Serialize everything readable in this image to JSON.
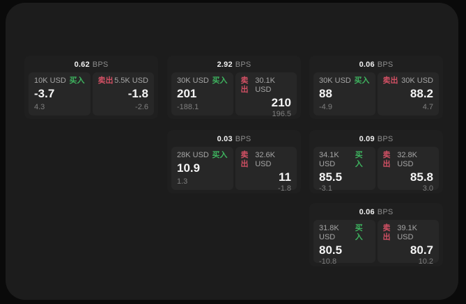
{
  "labels": {
    "bps_unit": "BPS",
    "buy": "买入",
    "sell": "卖出"
  },
  "colors": {
    "background": "#0a0a0a",
    "window": "#1c1c1c",
    "card": "#1f1f1f",
    "panel": "#272727",
    "buy_green": "#3eb45f",
    "sell_red": "#d25064"
  },
  "cards": [
    {
      "bps": "0.62",
      "buy": {
        "amount": "10K USD",
        "price": "-3.7",
        "delta": "4.3"
      },
      "sell": {
        "amount": "5.5K USD",
        "price": "-1.8",
        "delta": "-2.6"
      }
    },
    {
      "bps": "2.92",
      "buy": {
        "amount": "30K USD",
        "price": "201",
        "delta": "-188.1"
      },
      "sell": {
        "amount": "30.1K USD",
        "price": "210",
        "delta": "196.5"
      }
    },
    {
      "bps": "0.06",
      "buy": {
        "amount": "30K USD",
        "price": "88",
        "delta": "-4.9"
      },
      "sell": {
        "amount": "30K USD",
        "price": "88.2",
        "delta": "4.7"
      }
    },
    {
      "bps": "0.03",
      "buy": {
        "amount": "28K USD",
        "price": "10.9",
        "delta": "1.3"
      },
      "sell": {
        "amount": "32.6K USD",
        "price": "11",
        "delta": "-1.8"
      }
    },
    {
      "bps": "0.09",
      "buy": {
        "amount": "34.1K USD",
        "price": "85.5",
        "delta": "-3.1"
      },
      "sell": {
        "amount": "32.8K USD",
        "price": "85.8",
        "delta": "3.0"
      }
    },
    {
      "bps": "0.06",
      "buy": {
        "amount": "31.8K USD",
        "price": "80.5",
        "delta": "-10.8"
      },
      "sell": {
        "amount": "39.1K USD",
        "price": "80.7",
        "delta": "10.2"
      }
    }
  ]
}
